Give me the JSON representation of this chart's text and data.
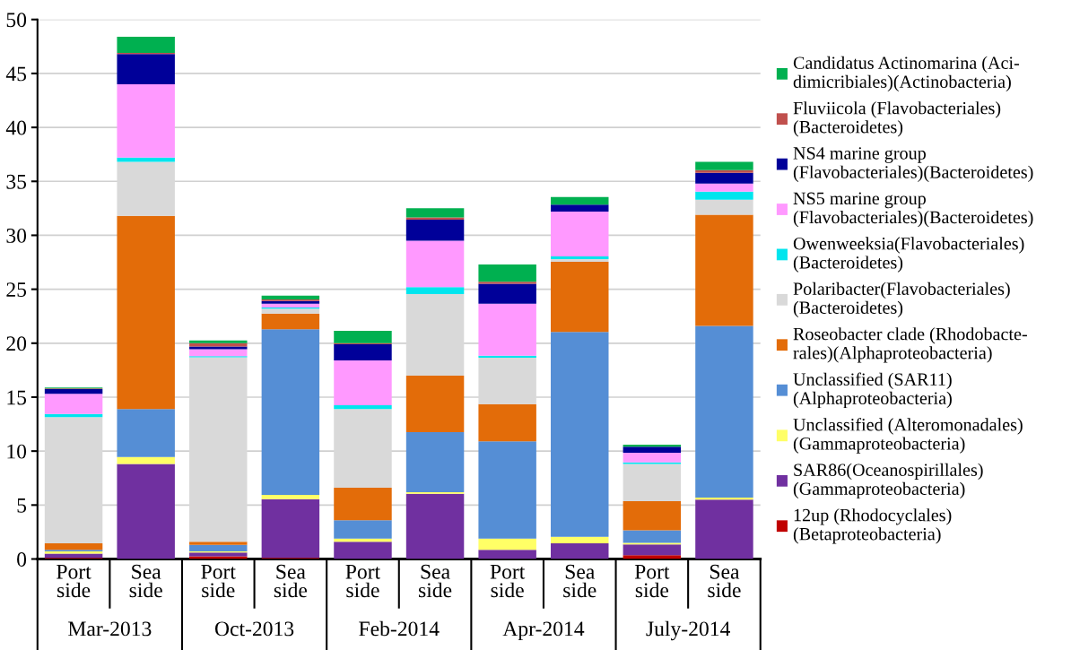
{
  "chart_data": {
    "type": "bar",
    "stacked": true,
    "categories": [
      "Port\nside",
      "Sea\nside",
      "Port\nside",
      "Sea\nside",
      "Port\nside",
      "Sea\nside",
      "Port\nside",
      "Sea\nside",
      "Port\nside",
      "Sea\nside"
    ],
    "annotations": [
      "Mar-2013",
      "Oct-2013",
      "Feb-2014",
      "Apr-2014",
      "July-2014"
    ],
    "ylim": [
      0,
      50
    ],
    "yticks": [
      0,
      5,
      10,
      15,
      20,
      25,
      30,
      35,
      40,
      45,
      50
    ],
    "grid": "y",
    "legend": "right",
    "series": [
      {
        "name": "12up (Rhodocyclales)\n(Betaproteobacteria)",
        "color": "#c00000",
        "values": [
          0.1,
          0,
          0.25,
          0.1,
          0,
          0,
          0,
          0,
          0.35,
          0
        ]
      },
      {
        "name": "SAR86(Oceanospirillales)\n(Gammaproteobacteria)",
        "color": "#7030a0",
        "values": [
          0.4,
          8.8,
          0.35,
          5.45,
          1.6,
          6.05,
          0.85,
          1.45,
          1.0,
          5.5
        ]
      },
      {
        "name": "Unclassified (Alteromonadales)\n(Gammaproteobacteria)",
        "color": "#ffff66",
        "values": [
          0.2,
          0.65,
          0.1,
          0.4,
          0.3,
          0.15,
          1.05,
          0.6,
          0.15,
          0.2
        ]
      },
      {
        "name": "Unclassified (SAR11)\n(Alphaproteobacteria)",
        "color": "#558ed5",
        "values": [
          0.15,
          4.45,
          0.6,
          15.35,
          1.7,
          5.55,
          9.0,
          19.0,
          1.15,
          15.9
        ]
      },
      {
        "name": "Roseobacter clade (Rhodobacte-\nrales)(Alphaproteobacteria)",
        "color": "#e36c09",
        "values": [
          0.6,
          17.9,
          0.3,
          1.45,
          3.0,
          5.25,
          3.45,
          6.5,
          2.7,
          10.3
        ]
      },
      {
        "name": "Polaribacter(Flavobacteriales)\n(Bacteroidetes)",
        "color": "#d9d9d9",
        "values": [
          11.7,
          5.0,
          17.1,
          0.45,
          7.3,
          7.55,
          4.3,
          0.25,
          3.45,
          1.4
        ]
      },
      {
        "name": "Owenweeksia(Flavobacteriales)\n(Bacteroidetes)",
        "color": "#00e5ee",
        "values": [
          0.3,
          0.4,
          0.1,
          0.1,
          0.35,
          0.65,
          0.2,
          0.25,
          0.15,
          0.75
        ]
      },
      {
        "name": "NS5 marine group\n(Flavobacteriales)(Bacteroidetes)",
        "color": "#ff99ff",
        "values": [
          1.85,
          6.8,
          0.65,
          0.35,
          4.15,
          4.3,
          4.8,
          4.15,
          0.9,
          0.75
        ]
      },
      {
        "name": "NS4 marine group\n(Flavobacteriales)(Bacteroidetes)",
        "color": "#000099",
        "values": [
          0.45,
          2.8,
          0.25,
          0.25,
          1.5,
          1.95,
          1.85,
          0.65,
          0.55,
          1.0
        ]
      },
      {
        "name": "Fluviicola (Flavobacteriales)\n(Bacteroidetes)",
        "color": "#c0504d",
        "values": [
          0.05,
          0.1,
          0.3,
          0.15,
          0.1,
          0.2,
          0.2,
          null,
          0,
          0.25
        ]
      },
      {
        "name": "Candidatus Actinomarina (Aci-\ndimicribiales)(Actinobacteria)",
        "color": "#00b050",
        "values": [
          0.1,
          1.5,
          0.25,
          0.35,
          1.15,
          0.85,
          1.6,
          0.7,
          0.2,
          0.75
        ]
      }
    ]
  }
}
